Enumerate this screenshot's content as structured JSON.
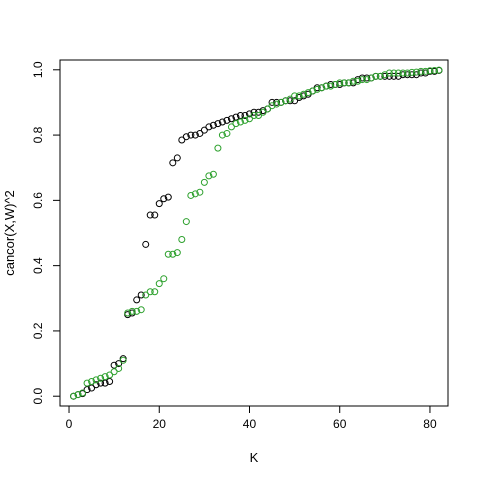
{
  "chart_data": {
    "type": "scatter",
    "title": "",
    "xlabel": "K",
    "ylabel": "cancor(X,W)^2",
    "xlim": [
      -2,
      84
    ],
    "ylim": [
      -0.03,
      1.03
    ],
    "xticks": [
      0,
      20,
      40,
      60,
      80
    ],
    "yticks": [
      0.0,
      0.2,
      0.4,
      0.6,
      0.8,
      1.0
    ],
    "xtick_labels": [
      "0",
      "20",
      "40",
      "60",
      "80"
    ],
    "ytick_labels": [
      "0.0",
      "0.2",
      "0.4",
      "0.6",
      "0.8",
      "1.0"
    ],
    "grid": false,
    "marker": "open-circle",
    "series": [
      {
        "color": "#000000",
        "x": [
          1,
          2,
          3,
          4,
          5,
          6,
          7,
          8,
          9,
          10,
          11,
          12,
          13,
          14,
          15,
          16,
          17,
          18,
          19,
          20,
          21,
          22,
          23,
          24,
          25,
          26,
          27,
          28,
          29,
          30,
          31,
          32,
          33,
          34,
          35,
          36,
          37,
          38,
          39,
          40,
          41,
          42,
          43,
          44,
          45,
          46,
          47,
          48,
          49,
          50,
          51,
          52,
          53,
          54,
          55,
          56,
          57,
          58,
          59,
          60,
          61,
          62,
          63,
          64,
          65,
          66,
          67,
          68,
          69,
          70,
          71,
          72,
          73,
          74,
          75,
          76,
          77,
          78,
          79,
          80,
          81,
          82
        ],
        "y": [
          0.0,
          0.005,
          0.008,
          0.02,
          0.025,
          0.035,
          0.04,
          0.04,
          0.045,
          0.095,
          0.1,
          0.115,
          0.25,
          0.255,
          0.295,
          0.31,
          0.465,
          0.555,
          0.555,
          0.59,
          0.605,
          0.61,
          0.715,
          0.73,
          0.785,
          0.795,
          0.8,
          0.8,
          0.805,
          0.815,
          0.825,
          0.83,
          0.835,
          0.84,
          0.845,
          0.85,
          0.855,
          0.86,
          0.86,
          0.865,
          0.87,
          0.87,
          0.875,
          0.88,
          0.9,
          0.9,
          0.9,
          0.905,
          0.905,
          0.905,
          0.915,
          0.92,
          0.925,
          0.935,
          0.945,
          0.945,
          0.95,
          0.955,
          0.955,
          0.955,
          0.96,
          0.96,
          0.96,
          0.97,
          0.975,
          0.975,
          0.975,
          0.98,
          0.98,
          0.98,
          0.98,
          0.98,
          0.98,
          0.985,
          0.985,
          0.985,
          0.985,
          0.99,
          0.99,
          0.995,
          0.995,
          0.998
        ]
      },
      {
        "color": "#2ca02c",
        "x": [
          1,
          2,
          3,
          4,
          5,
          6,
          7,
          8,
          9,
          10,
          11,
          12,
          13,
          14,
          15,
          16,
          17,
          18,
          19,
          20,
          21,
          22,
          23,
          24,
          25,
          26,
          27,
          28,
          29,
          30,
          31,
          32,
          33,
          34,
          35,
          36,
          37,
          38,
          39,
          40,
          41,
          42,
          43,
          44,
          45,
          46,
          47,
          48,
          49,
          50,
          51,
          52,
          53,
          54,
          55,
          56,
          57,
          58,
          59,
          60,
          61,
          62,
          63,
          64,
          65,
          66,
          67,
          68,
          69,
          70,
          71,
          72,
          73,
          74,
          75,
          76,
          77,
          78,
          79,
          80,
          81,
          82
        ],
        "y": [
          0.0,
          0.005,
          0.01,
          0.04,
          0.045,
          0.05,
          0.055,
          0.06,
          0.065,
          0.075,
          0.085,
          0.11,
          0.255,
          0.26,
          0.26,
          0.265,
          0.31,
          0.32,
          0.32,
          0.345,
          0.36,
          0.435,
          0.435,
          0.44,
          0.48,
          0.535,
          0.615,
          0.62,
          0.625,
          0.655,
          0.675,
          0.68,
          0.76,
          0.8,
          0.805,
          0.825,
          0.835,
          0.84,
          0.845,
          0.85,
          0.86,
          0.86,
          0.87,
          0.88,
          0.89,
          0.895,
          0.9,
          0.905,
          0.91,
          0.92,
          0.92,
          0.925,
          0.93,
          0.935,
          0.94,
          0.945,
          0.95,
          0.95,
          0.955,
          0.96,
          0.96,
          0.96,
          0.965,
          0.965,
          0.97,
          0.97,
          0.975,
          0.98,
          0.98,
          0.985,
          0.99,
          0.99,
          0.99,
          0.99,
          0.99,
          0.992,
          0.993,
          0.995,
          0.995,
          0.997,
          0.998,
          0.999
        ]
      }
    ]
  }
}
